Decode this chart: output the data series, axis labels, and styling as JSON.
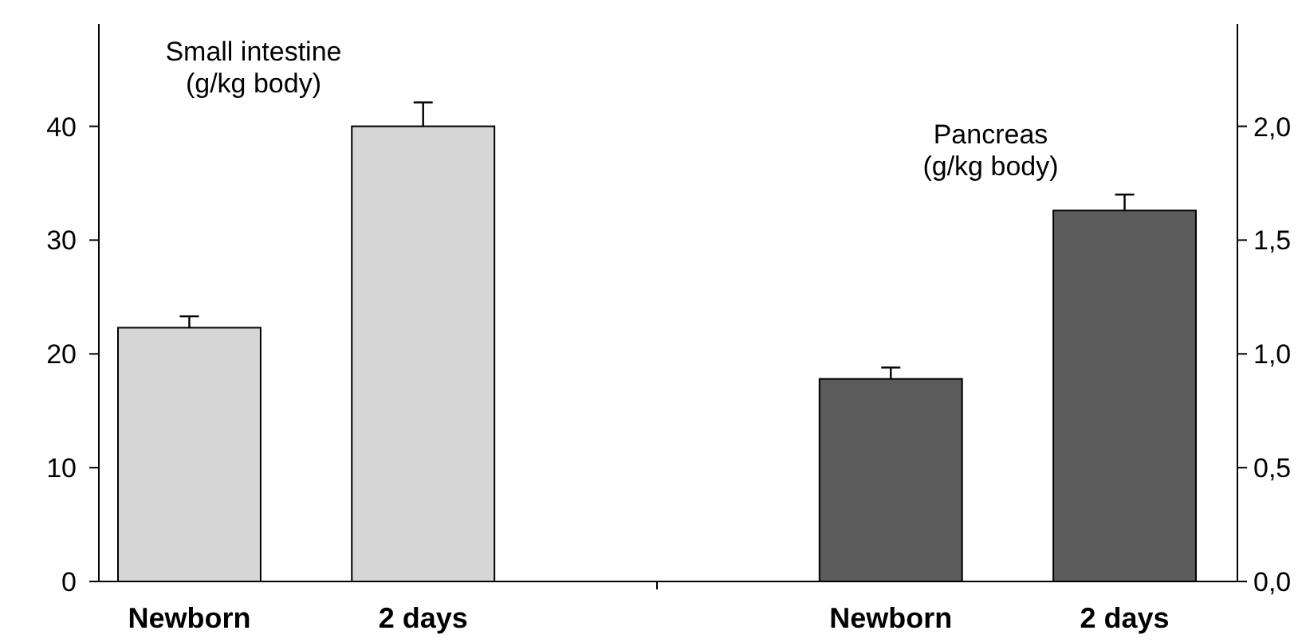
{
  "chart_data": {
    "type": "bar",
    "categories": [
      "Newborn",
      "2 days",
      null,
      "Newborn",
      "2 days"
    ],
    "series": [
      {
        "name": "Small intestine (g/kg body)",
        "color": "#d6d6d6",
        "values": [
          22.3,
          40,
          null,
          null,
          null
        ],
        "errors": [
          [
            22.3,
            23.3
          ],
          [
            40,
            42.1
          ],
          null,
          null,
          null
        ]
      },
      {
        "name": "Pancreas (g/kg body)",
        "color": "#5c5c5c",
        "axis": "y2",
        "values": [
          null,
          null,
          null,
          0.89,
          1.63
        ],
        "errors": [
          null,
          null,
          null,
          [
            0.89,
            0.94
          ],
          [
            1.63,
            1.7
          ]
        ]
      }
    ],
    "ylim": [
      0,
      49
    ],
    "yticks": [
      0,
      10,
      20,
      30,
      40
    ],
    "y2lim": [
      0,
      2.45
    ],
    "y2ticks": [
      {
        "value": 0,
        "label": "0,0"
      },
      {
        "value": 0.5,
        "label": "0,5"
      },
      {
        "value": 1,
        "label": "1,0"
      },
      {
        "value": 1.5,
        "label": "1,5"
      },
      {
        "value": 2,
        "label": "2,0"
      }
    ],
    "grid": false
  }
}
